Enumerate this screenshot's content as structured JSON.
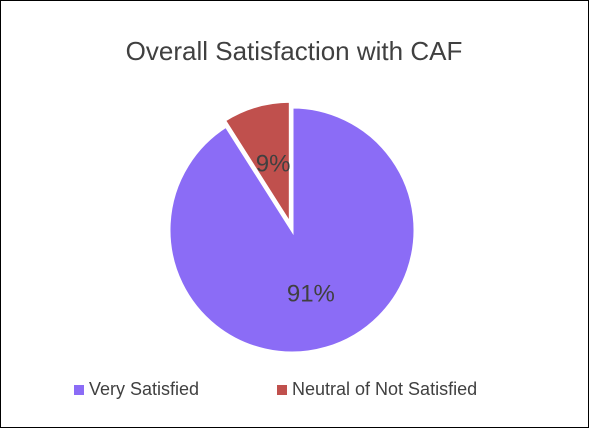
{
  "chart_data": {
    "type": "pie",
    "title": "Overall Satisfaction with CAF",
    "categories": [
      "Very Satisfied",
      "Neutral of Not Satisfied"
    ],
    "values": [
      91,
      9
    ],
    "value_labels": [
      "91%",
      "9%"
    ],
    "colors": [
      "#8b6cf6",
      "#c0504d"
    ],
    "legend": "bottom"
  }
}
